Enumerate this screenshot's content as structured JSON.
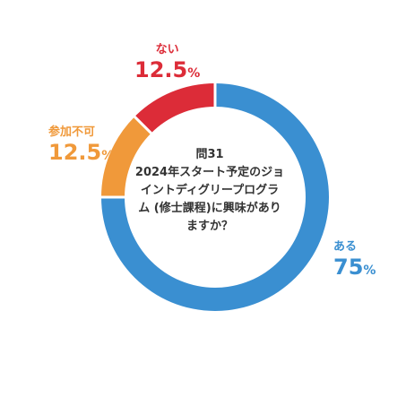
{
  "chart_data": {
    "type": "pie",
    "variant": "donut",
    "title_lines": [
      "問31",
      "2024年スタート予定のジョ",
      "イントディグリープログラ",
      "ム (修士課程)に興味があり",
      "ますか？"
    ],
    "slices": [
      {
        "label": "ある",
        "value": 75,
        "pct_number": "75",
        "pct_unit": "%",
        "color": "#3a8fd1"
      },
      {
        "label": "参加不可",
        "value": 12.5,
        "pct_number": "12.5",
        "pct_unit": "%",
        "color": "#f0993a"
      },
      {
        "label": "ない",
        "value": 12.5,
        "pct_number": "12.5",
        "pct_unit": "%",
        "color": "#dc2c38"
      }
    ],
    "start_angle_deg": 0,
    "direction": "clockwise",
    "separator_color": "#ffffff"
  }
}
